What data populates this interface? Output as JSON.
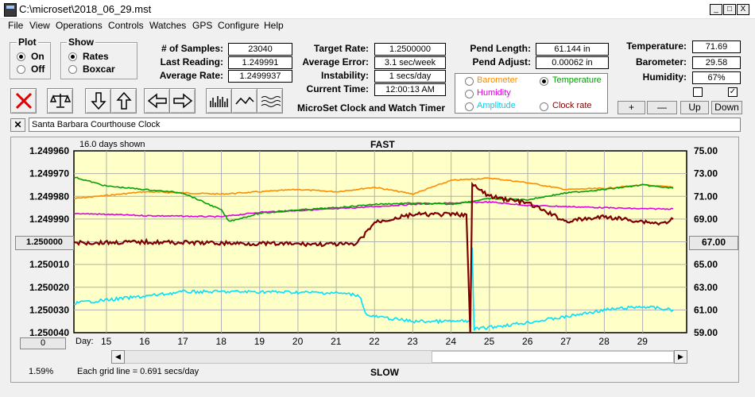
{
  "window": {
    "title": "C:\\microset\\2018_06_29.mst",
    "min": "_",
    "max": "□",
    "close": "X"
  },
  "menu": [
    "File",
    "View",
    "Operations",
    "Controls",
    "Watches",
    "GPS",
    "Configure",
    "Help"
  ],
  "plot": {
    "title": "Plot",
    "options": [
      "On",
      "Off"
    ],
    "selected": "On"
  },
  "show": {
    "title": "Show",
    "options": [
      "Rates",
      "Boxcar"
    ],
    "selected": "Rates"
  },
  "stats": {
    "samples_label": "# of Samples:",
    "samples": "23040",
    "last_label": "Last Reading:",
    "last": "1.249991",
    "avg_label": "Average Rate:",
    "avg": "1.2499937"
  },
  "rates": {
    "target_label": "Target Rate:",
    "target": "1.2500000",
    "error_label": "Average Error:",
    "error": "3.1 sec/week",
    "instab_label": "Instability:",
    "instab": "1 secs/day",
    "time_label": "Current Time:",
    "time": "12:00:13 AM"
  },
  "pend": {
    "length_label": "Pend Length:",
    "length": "61.144 in",
    "adjust_label": "Pend Adjust:",
    "adjust": "0.00062 in"
  },
  "env": {
    "temp_label": "Temperature:",
    "temp": "71.69",
    "baro_label": "Barometer:",
    "baro": "29.58",
    "hum_label": "Humidity:",
    "hum": "67%"
  },
  "overlay": {
    "barometer": "Barometer",
    "temperature": "Temperature",
    "humidity": "Humidity",
    "amplitude": "Amplitude",
    "clockrate": "Clock rate",
    "selected": "Temperature"
  },
  "buttons": {
    "plus": "+",
    "minus": "—",
    "up": "Up",
    "down": "Down"
  },
  "app_title": "MicroSet Clock and Watch Timer",
  "clock_name": "Santa Barbara Courthouse Clock",
  "colors": {
    "plot_bg": "#ffffc8",
    "barometer": "#ff8c00",
    "temperature": "#00a000",
    "humidity": "#e000e0",
    "amplitude": "#00e0ff",
    "clockrate": "#800000"
  },
  "chart_data": {
    "type": "line",
    "title": "FAST",
    "bottom_label": "SLOW",
    "days_shown": "16.0 days shown",
    "grid_note": "Each grid line = 0.691 secs/day",
    "percent": "1.59%",
    "left_center_value": "1.250000",
    "right_center_value": "67.00",
    "zero_button": "0",
    "day_prefix": "Day:",
    "x_ticks": [
      "15",
      "16",
      "17",
      "18",
      "19",
      "20",
      "21",
      "22",
      "23",
      "24",
      "25",
      "26",
      "27",
      "28",
      "29"
    ],
    "x_range": [
      14.15,
      30.15
    ],
    "left_ticks": [
      "1.249960",
      "1.249970",
      "1.249980",
      "1.249990",
      "1.250000",
      "1.250010",
      "1.250020",
      "1.250030",
      "1.250040"
    ],
    "ylim_rate": [
      1.24996,
      1.25004
    ],
    "right_ticks": [
      "75.00",
      "73.00",
      "71.00",
      "69.00",
      "67.00",
      "65.00",
      "63.00",
      "61.00",
      "59.00"
    ],
    "ylim_right": [
      59,
      75
    ],
    "grid": true,
    "series": [
      {
        "name": "Clock rate",
        "color": "#800000",
        "axis": "rate",
        "points": [
          [
            14.15,
            1.2500005
          ],
          [
            16,
            1.2500001
          ],
          [
            18,
            1.2500006
          ],
          [
            19.5,
            1.2500009
          ],
          [
            21.5,
            1.2500012
          ],
          [
            21.6,
            1.2499996
          ],
          [
            22,
            1.2499915
          ],
          [
            23,
            1.249988
          ],
          [
            24.4,
            1.249988
          ],
          [
            24.5,
            1.25004
          ],
          [
            24.55,
            1.249975
          ],
          [
            25,
            1.24998
          ],
          [
            26,
            1.249983
          ],
          [
            27,
            1.249991
          ],
          [
            28,
            1.249989
          ],
          [
            29.5,
            1.249992
          ],
          [
            29.8,
            1.24999
          ]
        ]
      },
      {
        "name": "Amplitude",
        "color": "#00e0ff",
        "axis": "right",
        "points": [
          [
            14.15,
            61.6
          ],
          [
            16,
            62.2
          ],
          [
            17,
            62.6
          ],
          [
            19,
            62.6
          ],
          [
            21,
            62.5
          ],
          [
            21.6,
            62.3
          ],
          [
            21.8,
            60.5
          ],
          [
            23,
            60.0
          ],
          [
            24.5,
            60.0
          ],
          [
            24.55,
            66.5
          ],
          [
            24.6,
            59.3
          ],
          [
            26,
            59.9
          ],
          [
            27,
            60.4
          ],
          [
            28,
            61.0
          ],
          [
            29,
            61.3
          ],
          [
            29.8,
            61.0
          ]
        ]
      },
      {
        "name": "Temperature",
        "color": "#00a000",
        "axis": "right",
        "points": [
          [
            14.15,
            72.7
          ],
          [
            15,
            71.9
          ],
          [
            16,
            71.6
          ],
          [
            17,
            71.3
          ],
          [
            18,
            69.8
          ],
          [
            18.2,
            68.8
          ],
          [
            19,
            69.5
          ],
          [
            20,
            69.8
          ],
          [
            21,
            70.0
          ],
          [
            22,
            70.3
          ],
          [
            23,
            70.4
          ],
          [
            24,
            70.3
          ],
          [
            25,
            70.8
          ],
          [
            26,
            70.7
          ],
          [
            27,
            71.3
          ],
          [
            28,
            71.6
          ],
          [
            29,
            72.0
          ],
          [
            29.8,
            71.7
          ]
        ]
      },
      {
        "name": "Barometer",
        "color": "#ff8c00",
        "axis": "right",
        "points": [
          [
            14.15,
            70.8
          ],
          [
            16,
            71.4
          ],
          [
            18,
            71.2
          ],
          [
            20,
            71.6
          ],
          [
            21,
            71.4
          ],
          [
            22,
            71.8
          ],
          [
            23,
            71.2
          ],
          [
            24,
            72.4
          ],
          [
            25,
            72.6
          ],
          [
            26,
            72.2
          ],
          [
            27,
            71.6
          ],
          [
            28,
            71.7
          ],
          [
            29,
            72.0
          ],
          [
            29.8,
            71.8
          ]
        ]
      },
      {
        "name": "Humidity",
        "color": "#e000e0",
        "axis": "right",
        "points": [
          [
            14.15,
            69.5
          ],
          [
            16,
            69.3
          ],
          [
            18,
            69.2
          ],
          [
            19,
            69.6
          ],
          [
            21,
            69.9
          ],
          [
            23,
            70.3
          ],
          [
            24,
            70.4
          ],
          [
            25,
            70.5
          ],
          [
            26,
            70.2
          ],
          [
            27,
            70.1
          ],
          [
            28,
            70.0
          ],
          [
            29,
            69.9
          ],
          [
            29.8,
            69.9
          ]
        ]
      }
    ]
  }
}
